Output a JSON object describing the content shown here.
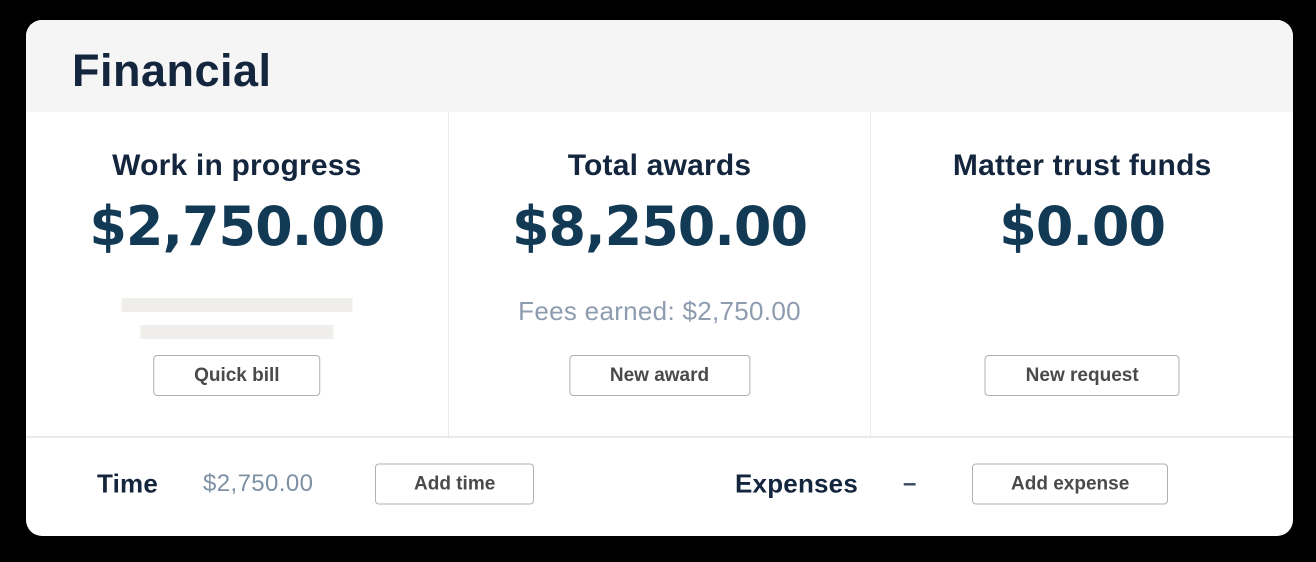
{
  "panel": {
    "title": "Financial",
    "columns": [
      {
        "heading": "Work in progress",
        "amount": "$2,750.00",
        "button_label": "Quick bill"
      },
      {
        "heading": "Total awards",
        "amount": "$8,250.00",
        "subtext": "Fees earned: $2,750.00",
        "button_label": "New award"
      },
      {
        "heading": "Matter trust funds",
        "amount": "$0.00",
        "button_label": "New request"
      }
    ],
    "footer": {
      "time_label": "Time",
      "time_value": "$2,750.00",
      "add_time_button": "Add time",
      "expenses_label": "Expenses",
      "expenses_value": "–",
      "add_expense_button": "Add expense"
    },
    "colors": {
      "heading_navy": "#14253e",
      "amount_navy": "#133a55",
      "muted_slate": "#8e9cb0",
      "footer_value_slate": "#7e90a4",
      "header_background": "#f6f5f6",
      "divider": "#eceae6",
      "skeleton": "#f0eeea",
      "button_border": "#b0b0b0",
      "button_text": "#4a4a4a",
      "page_background": "#000000"
    }
  }
}
